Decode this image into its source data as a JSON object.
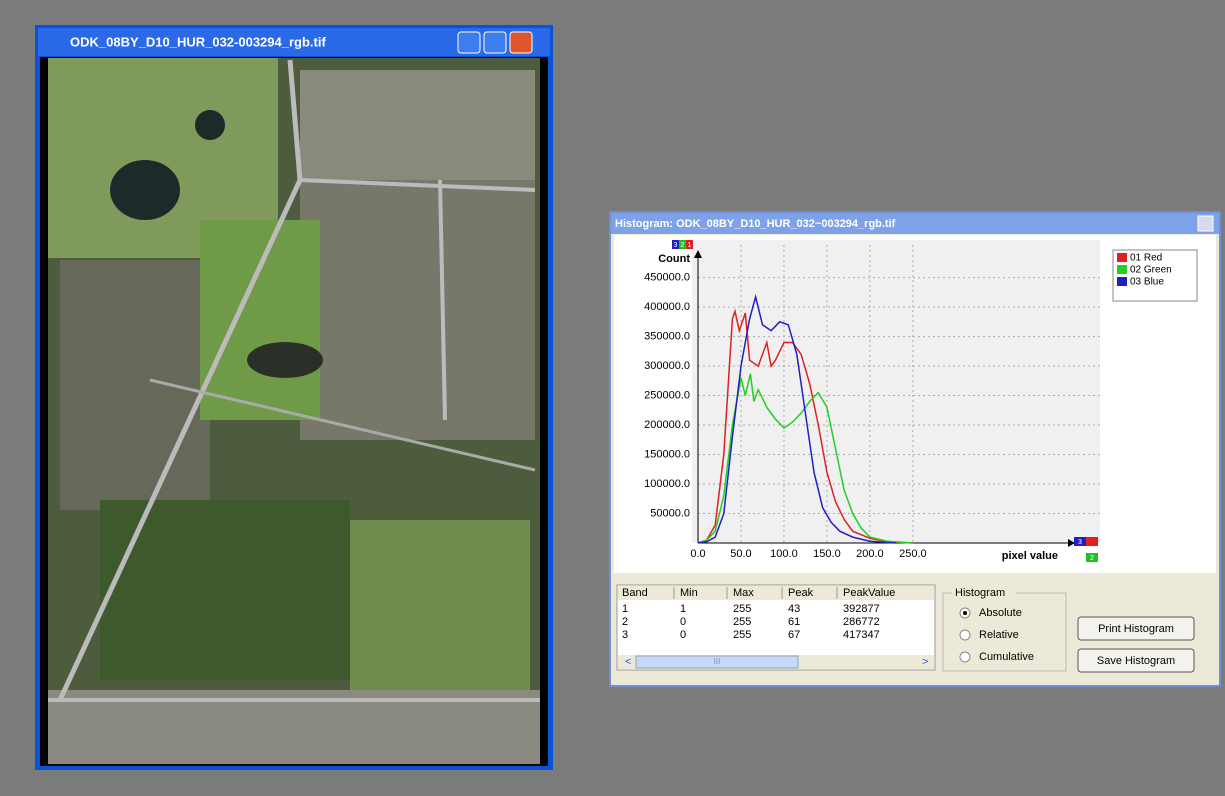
{
  "image_window": {
    "title": "ODK_08BY_D10_HUR_032-003294_rgb.tif"
  },
  "histogram_window": {
    "title": "Histogram: ODK_08BY_D10_HUR_032~003294_rgb.tif"
  },
  "band_icons": [
    "3",
    "2",
    "1"
  ],
  "chart_data": {
    "type": "line",
    "y_label": "Count",
    "x_label": "pixel value",
    "xlim": [
      0,
      420
    ],
    "ylim": [
      0,
      490000
    ],
    "xticks": [
      {
        "value": 0,
        "label": "0.0"
      },
      {
        "value": 50,
        "label": "50.0"
      },
      {
        "value": 100,
        "label": "100.0"
      },
      {
        "value": 150,
        "label": "150.0"
      },
      {
        "value": 200,
        "label": "200.0"
      },
      {
        "value": 250,
        "label": "250.0"
      }
    ],
    "yticks": [
      {
        "value": 50000,
        "label": "50000.0"
      },
      {
        "value": 100000,
        "label": "100000.0"
      },
      {
        "value": 150000,
        "label": "150000.0"
      },
      {
        "value": 200000,
        "label": "200000.0"
      },
      {
        "value": 250000,
        "label": "250000.0"
      },
      {
        "value": 300000,
        "label": "300000.0"
      },
      {
        "value": 350000,
        "label": "350000.0"
      },
      {
        "value": 400000,
        "label": "400000.0"
      },
      {
        "value": 450000,
        "label": "450000.0"
      }
    ],
    "grid": true,
    "legend": "top-right",
    "series": [
      {
        "name": "01 Red",
        "color": "#e02020",
        "x": [
          0,
          10,
          20,
          30,
          40,
          43,
          48,
          55,
          60,
          70,
          80,
          85,
          90,
          100,
          110,
          120,
          130,
          140,
          150,
          160,
          170,
          180,
          200,
          220,
          250
        ],
        "values": [
          0,
          5000,
          30000,
          150000,
          380000,
          392877,
          360000,
          390000,
          310000,
          300000,
          340000,
          300000,
          310000,
          340000,
          340000,
          320000,
          270000,
          200000,
          120000,
          70000,
          40000,
          20000,
          8000,
          2000,
          0
        ]
      },
      {
        "name": "02 Green",
        "color": "#20d020",
        "x": [
          0,
          10,
          20,
          30,
          40,
          50,
          55,
          61,
          65,
          70,
          80,
          90,
          100,
          110,
          120,
          130,
          140,
          150,
          160,
          170,
          180,
          190,
          200,
          220,
          250
        ],
        "values": [
          0,
          5000,
          20000,
          80000,
          200000,
          280000,
          250000,
          286772,
          240000,
          260000,
          230000,
          210000,
          195000,
          205000,
          220000,
          240000,
          255000,
          230000,
          160000,
          90000,
          50000,
          25000,
          10000,
          3000,
          0
        ]
      },
      {
        "name": "03 Blue",
        "color": "#2020c0",
        "x": [
          0,
          10,
          20,
          30,
          40,
          50,
          60,
          67,
          75,
          85,
          95,
          105,
          115,
          125,
          135,
          145,
          155,
          165,
          180,
          200,
          230
        ],
        "values": [
          0,
          2000,
          10000,
          50000,
          180000,
          300000,
          380000,
          417347,
          370000,
          360000,
          375000,
          370000,
          320000,
          220000,
          120000,
          60000,
          35000,
          20000,
          10000,
          3000,
          0
        ]
      }
    ]
  },
  "table": {
    "columns": [
      "Band",
      "Min",
      "Max",
      "Peak",
      "PeakValue"
    ],
    "rows": [
      [
        1,
        1,
        255,
        43,
        392877
      ],
      [
        2,
        0,
        255,
        61,
        286772
      ],
      [
        3,
        0,
        255,
        67,
        417347
      ]
    ],
    "scroll_label": "III"
  },
  "histogram_mode": {
    "title": "Histogram",
    "options": [
      "Absolute",
      "Relative",
      "Cumulative"
    ],
    "selected": 0
  },
  "buttons": [
    "Print Histogram",
    "Save Histogram"
  ]
}
